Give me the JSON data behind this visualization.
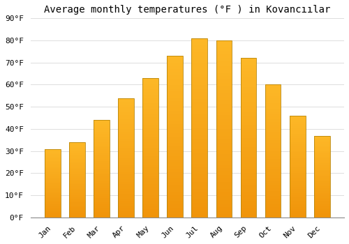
{
  "title": "Average monthly temperatures (°F ) in Kovancıılar",
  "months": [
    "Jan",
    "Feb",
    "Mar",
    "Apr",
    "May",
    "Jun",
    "Jul",
    "Aug",
    "Sep",
    "Oct",
    "Nov",
    "Dec"
  ],
  "values": [
    31,
    34,
    44,
    54,
    63,
    73,
    81,
    80,
    72,
    60,
    46,
    37
  ],
  "bar_color_top": "#FDB827",
  "bar_color_bottom": "#F0940A",
  "bar_edge_color": "#B8860B",
  "background_color": "#FFFFFF",
  "grid_color": "#DDDDDD",
  "ylim": [
    0,
    90
  ],
  "yticks": [
    0,
    10,
    20,
    30,
    40,
    50,
    60,
    70,
    80,
    90
  ],
  "ylabel_suffix": "°F",
  "title_fontsize": 10,
  "tick_fontsize": 8,
  "font_family": "monospace",
  "bar_width": 0.65
}
